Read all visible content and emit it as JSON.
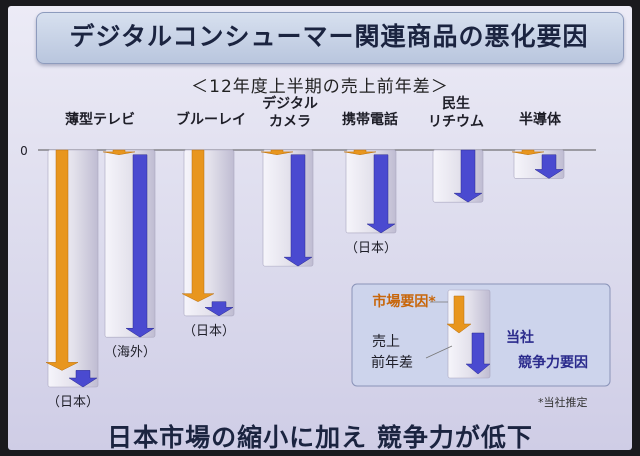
{
  "title": "デジタルコンシューマー関連商品の悪化要因",
  "subtitle": "＜12年度上半期の売上前年差＞",
  "bottom_text": "日本市場の縮小に加え 競争力が低下",
  "note": "*当社推定",
  "colors": {
    "market": "#e8961e",
    "competitiveness": "#4a4ad0",
    "column": "#e4e2ec"
  },
  "chart_data": {
    "type": "bar",
    "subtype": "waterfall-decomposition",
    "zero_label": "0",
    "unit": "",
    "groups": [
      {
        "name": "薄型テレビ",
        "bars": [
          {
            "label": "（日本）",
            "total": -100,
            "market": -93,
            "competitiveness": -7
          },
          {
            "label": "（海外）",
            "total": -79,
            "market": -2,
            "competitiveness": -77
          }
        ]
      },
      {
        "name": "ブルーレイ",
        "bars": [
          {
            "label": "（日本）",
            "total": -70,
            "market": -64,
            "competitiveness": -6
          }
        ]
      },
      {
        "name": "デジタルカメラ",
        "bars": [
          {
            "label": "",
            "total": -49,
            "market": -2,
            "competitiveness": -47
          }
        ]
      },
      {
        "name": "携帯電話",
        "bars": [
          {
            "label": "（日本）",
            "total": -35,
            "market": -2,
            "competitiveness": -33
          }
        ]
      },
      {
        "name": "民生リチウム",
        "bars": [
          {
            "label": "",
            "total": -22,
            "market": 0,
            "competitiveness": -22
          }
        ]
      },
      {
        "name": "半導体",
        "bars": [
          {
            "label": "",
            "total": -12,
            "market": -2,
            "competitiveness": -10
          }
        ]
      }
    ],
    "legend": {
      "market_label": "市場要因*",
      "column_label_1": "売上",
      "column_label_2": "前年差",
      "competitiveness_label_1": "当社",
      "competitiveness_label_2": "競争力要因",
      "placement": "bottom-right"
    }
  }
}
